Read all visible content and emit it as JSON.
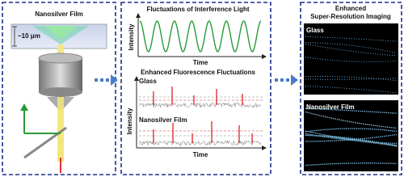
{
  "panels": [
    {
      "title": "Nanosilver Film",
      "scale_label": "~10 μm"
    },
    {
      "top_plot": {
        "title": "Fluctuations of Interference Light",
        "y_label": "Intensity",
        "x_label": "Time"
      },
      "bottom_plot": {
        "title": "Enhanced Fluorescence Fluctuations",
        "traces": [
          "Glass",
          "Nanosilver Film"
        ],
        "y_label": "Intensity",
        "x_label": "Time"
      }
    },
    {
      "title_lines": [
        "Enhanced",
        "Super-Resolution Imaging"
      ],
      "images": [
        "Glass",
        "Nanosilver Film"
      ]
    }
  ]
}
